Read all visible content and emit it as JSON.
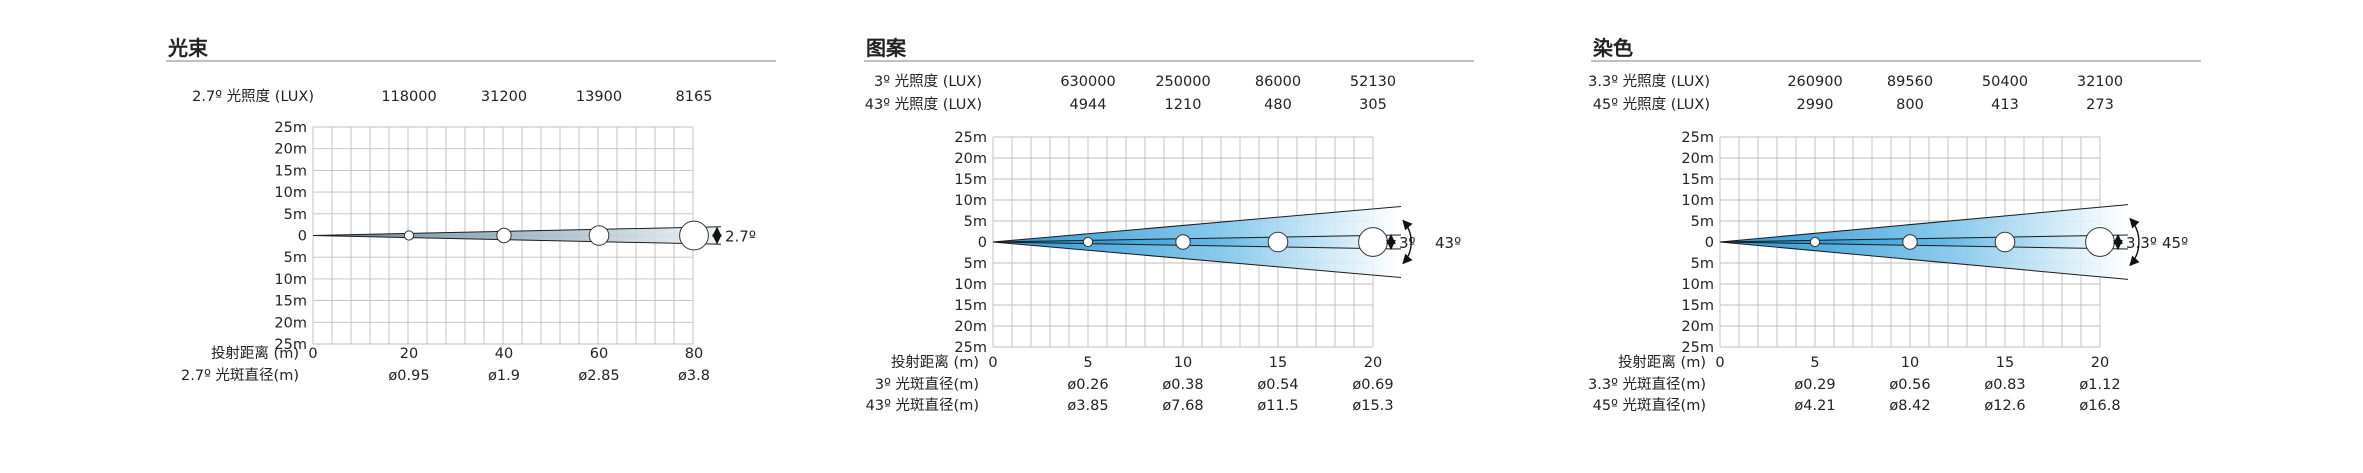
{
  "chart_data": [
    {
      "type": "beam-spread",
      "title": "光束",
      "lux_rows": [
        {
          "label": "2.7º 光照度 (LUX)",
          "values": [
            "118000",
            "31200",
            "13900",
            "8165"
          ]
        }
      ],
      "distance_label": "投射距离 (m)",
      "distances": [
        "0",
        "20",
        "40",
        "60",
        "80"
      ],
      "diameter_rows": [
        {
          "label": "2.7º 光斑直径(m)",
          "values": [
            "ø0.95",
            "ø1.9",
            "ø2.85",
            "ø3.8"
          ]
        }
      ],
      "y_ticks": [
        "25m",
        "20m",
        "15m",
        "10m",
        "5m",
        "0",
        "5m",
        "10m",
        "15m",
        "20m",
        "25m"
      ],
      "angles": [
        {
          "label": "2.7º",
          "degrees": 2.7
        }
      ],
      "fill": "gray"
    },
    {
      "type": "beam-spread",
      "title": "图案",
      "lux_rows": [
        {
          "label": "3º 光照度 (LUX)",
          "values": [
            "630000",
            "250000",
            "86000",
            "52130"
          ]
        },
        {
          "label": "43º 光照度 (LUX)",
          "values": [
            "4944",
            "1210",
            "480",
            "305"
          ]
        }
      ],
      "distance_label": "投射距离 (m)",
      "distances": [
        "0",
        "5",
        "10",
        "15",
        "20"
      ],
      "diameter_rows": [
        {
          "label": "3º 光斑直径(m)",
          "values": [
            "ø0.26",
            "ø0.38",
            "ø0.54",
            "ø0.69"
          ]
        },
        {
          "label": "43º 光斑直径(m)",
          "values": [
            "ø3.85",
            "ø7.68",
            "ø11.5",
            "ø15.3"
          ]
        }
      ],
      "y_ticks": [
        "25m",
        "20m",
        "15m",
        "10m",
        "5m",
        "0",
        "5m",
        "10m",
        "15m",
        "20m",
        "25m"
      ],
      "angles": [
        {
          "label": "3º",
          "degrees": 3
        },
        {
          "label": "43º",
          "degrees": 43
        }
      ],
      "fill": "blue"
    },
    {
      "type": "beam-spread",
      "title": "染色",
      "lux_rows": [
        {
          "label": "3.3º 光照度 (LUX)",
          "values": [
            "260900",
            "89560",
            "50400",
            "32100"
          ]
        },
        {
          "label": "45º 光照度 (LUX)",
          "values": [
            "2990",
            "800",
            "413",
            "273"
          ]
        }
      ],
      "distance_label": "投射距离 (m)",
      "distances": [
        "0",
        "5",
        "10",
        "15",
        "20"
      ],
      "diameter_rows": [
        {
          "label": "3.3º 光斑直径(m)",
          "values": [
            "ø0.29",
            "ø0.56",
            "ø0.83",
            "ø1.12"
          ]
        },
        {
          "label": "45º 光斑直径(m)",
          "values": [
            "ø4.21",
            "ø8.42",
            "ø12.6",
            "ø16.8"
          ]
        }
      ],
      "y_ticks": [
        "25m",
        "20m",
        "15m",
        "10m",
        "5m",
        "0",
        "5m",
        "10m",
        "15m",
        "20m",
        "25m"
      ],
      "angles": [
        {
          "label": "3.3º",
          "degrees": 3.3
        },
        {
          "label": "45º",
          "degrees": 45
        }
      ],
      "fill": "blue"
    }
  ],
  "colors": {
    "title_rule": "#9a9a9a",
    "grid": "#bdbdbd",
    "text": "#222222",
    "beam_blue": "#2f9fd8",
    "beam_gray": "#8ea3b3"
  }
}
